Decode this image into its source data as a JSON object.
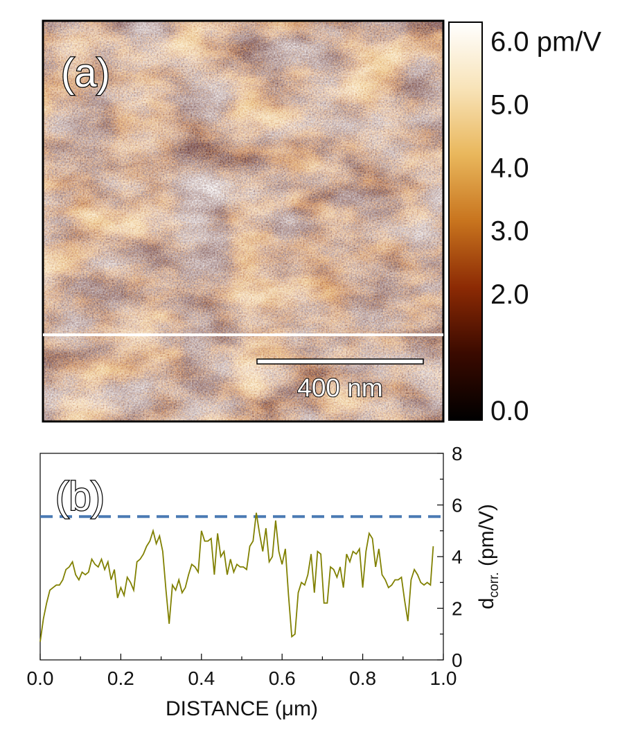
{
  "panel_a": {
    "label": "(a)",
    "scale_bar_label": "400 nm",
    "colorbar": {
      "ticks": [
        "0.0",
        "2.0",
        "3.0",
        "4.0",
        "5.0",
        "6.0 pm/V"
      ],
      "tick_values": [
        0,
        2,
        3,
        4,
        5,
        6
      ],
      "range": [
        0,
        6.3
      ],
      "colors": [
        "#000000",
        "#3a0a00",
        "#8c2a04",
        "#c8741e",
        "#e9b75c",
        "#f8e3b8",
        "#ffffff"
      ]
    }
  },
  "chart_data": {
    "type": "line",
    "panel_label": "(b)",
    "xlabel": "DISTANCE (μm)",
    "ylabel_main": "d",
    "ylabel_sub": "corr.",
    "ylabel_unit": " (pm/V)",
    "xlim": [
      0,
      1.0
    ],
    "ylim": [
      0,
      8
    ],
    "x_ticks": [
      "0.0",
      "0.2",
      "0.4",
      "0.6",
      "0.8",
      "1.0"
    ],
    "x_tick_values": [
      0,
      0.2,
      0.4,
      0.6,
      0.8,
      1.0
    ],
    "y_ticks": [
      "0",
      "2",
      "4",
      "6",
      "8"
    ],
    "y_tick_values": [
      0,
      2,
      4,
      6,
      8
    ],
    "grid": false,
    "series": [
      {
        "color": "#808000",
        "x": [
          0.0,
          0.008,
          0.016,
          0.024,
          0.032,
          0.04,
          0.048,
          0.056,
          0.064,
          0.072,
          0.08,
          0.088,
          0.096,
          0.104,
          0.112,
          0.12,
          0.128,
          0.136,
          0.144,
          0.152,
          0.16,
          0.168,
          0.176,
          0.184,
          0.192,
          0.2,
          0.208,
          0.216,
          0.224,
          0.232,
          0.24,
          0.248,
          0.256,
          0.264,
          0.272,
          0.28,
          0.288,
          0.296,
          0.304,
          0.312,
          0.32,
          0.328,
          0.336,
          0.344,
          0.352,
          0.36,
          0.368,
          0.376,
          0.384,
          0.392,
          0.4,
          0.408,
          0.416,
          0.424,
          0.432,
          0.44,
          0.448,
          0.456,
          0.464,
          0.472,
          0.48,
          0.488,
          0.496,
          0.504,
          0.512,
          0.52,
          0.528,
          0.536,
          0.544,
          0.552,
          0.56,
          0.568,
          0.576,
          0.584,
          0.592,
          0.6,
          0.608,
          0.616,
          0.624,
          0.632,
          0.64,
          0.648,
          0.656,
          0.664,
          0.672,
          0.68,
          0.688,
          0.696,
          0.704,
          0.712,
          0.72,
          0.728,
          0.736,
          0.744,
          0.752,
          0.76,
          0.768,
          0.776,
          0.784,
          0.792,
          0.8,
          0.808,
          0.816,
          0.824,
          0.832,
          0.84,
          0.848,
          0.856,
          0.864,
          0.872,
          0.88,
          0.888,
          0.896,
          0.904,
          0.912,
          0.92,
          0.928,
          0.936,
          0.944,
          0.952,
          0.96,
          0.968,
          0.975
        ],
        "y": [
          0.7,
          1.6,
          2.2,
          2.7,
          2.8,
          2.9,
          2.9,
          3.1,
          3.5,
          3.6,
          3.8,
          3.3,
          3.1,
          3.4,
          3.3,
          3.4,
          3.9,
          3.7,
          3.6,
          3.9,
          3.5,
          3.8,
          3.1,
          3.5,
          2.4,
          2.8,
          2.5,
          3.2,
          3.0,
          2.7,
          3.8,
          3.9,
          4.1,
          4.4,
          4.6,
          5.0,
          4.5,
          4.8,
          4.2,
          2.7,
          1.4,
          2.9,
          2.7,
          3.1,
          2.6,
          2.8,
          3.3,
          3.7,
          3.6,
          3.4,
          5.0,
          4.6,
          4.6,
          4.7,
          3.3,
          4.9,
          4.0,
          4.2,
          3.3,
          3.9,
          3.4,
          3.7,
          3.6,
          3.6,
          3.5,
          4.4,
          4.6,
          5.7,
          4.9,
          4.2,
          5.1,
          3.8,
          4.0,
          5.4,
          4.2,
          3.7,
          4.3,
          2.5,
          0.9,
          1.0,
          2.6,
          3.0,
          2.9,
          3.3,
          4.1,
          2.6,
          4.2,
          4.1,
          2.2,
          2.2,
          3.6,
          3.5,
          3.2,
          3.6,
          2.8,
          4.1,
          3.8,
          4.2,
          4.1,
          4.3,
          2.8,
          4.2,
          4.9,
          4.7,
          3.6,
          4.3,
          3.3,
          3.1,
          2.8,
          2.9,
          3.1,
          3.1,
          3.2,
          2.3,
          1.5,
          3.1,
          3.5,
          3.3,
          3.0,
          2.9,
          3.0,
          2.9,
          4.4
        ]
      }
    ],
    "reference_lines": [
      {
        "orientation": "horizontal",
        "y": 5.55,
        "style": "dashed",
        "color": "#4a7ab4"
      }
    ]
  }
}
